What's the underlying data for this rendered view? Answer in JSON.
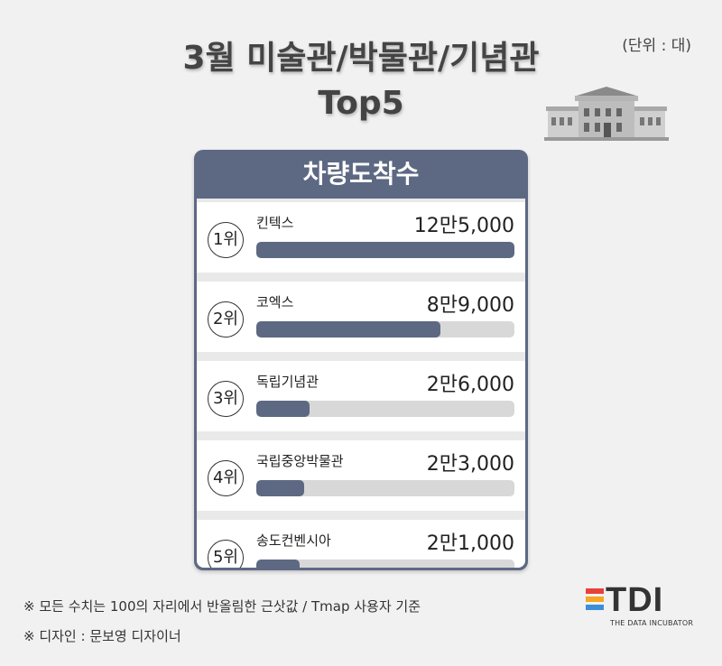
{
  "title_line1": "3월 미술관/박물관/기념관",
  "title_line2": "Top5",
  "unit": "(단위 : 대)",
  "chart_data": {
    "type": "bar",
    "title": "차량도착수",
    "categories": [
      "킨텍스",
      "코엑스",
      "독립기념관",
      "국립중앙박물관",
      "송도컨벤시아"
    ],
    "ranks": [
      "1위",
      "2위",
      "3위",
      "4위",
      "5위"
    ],
    "values": [
      125000,
      89000,
      26000,
      23000,
      21000
    ],
    "value_labels": [
      "12만5,000",
      "8만9,000",
      "2만6,000",
      "2만3,000",
      "2만1,000"
    ],
    "xlim": [
      0,
      125000
    ]
  },
  "footnotes": [
    "※ 모든 수치는 100의 자리에서 반올림한 근삿값 / Tmap 사용자 기준",
    "※ 디자인 : 문보영 디자이너"
  ],
  "logo": {
    "text": "TDI",
    "subtitle": "THE DATA INCUBATOR",
    "colors": [
      "#e8413a",
      "#f5a623",
      "#3b8fd8"
    ]
  },
  "colors": {
    "accent": "#5d6983",
    "track": "#d8d8d8"
  }
}
